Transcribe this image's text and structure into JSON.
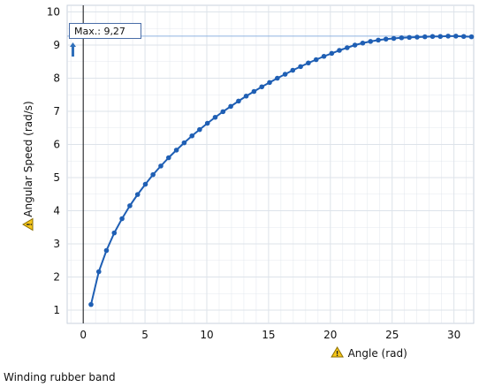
{
  "chart_data": {
    "type": "line",
    "title": "",
    "xlabel": "Angle (rad)",
    "ylabel": "Angular Speed (rad/s)",
    "xlim": [
      -1.3,
      31.6
    ],
    "ylim": [
      0.6,
      10.2
    ],
    "xticks": [
      0,
      5,
      10,
      15,
      20,
      25,
      30
    ],
    "yticks": [
      1,
      2,
      3,
      4,
      5,
      6,
      7,
      8,
      9,
      10
    ],
    "grid": true,
    "caption": "Winding rubber band",
    "annotation": {
      "label": "Max.: 9,27",
      "value": 9.27
    },
    "series": [
      {
        "x": [
          0.63,
          1.26,
          1.88,
          2.51,
          3.14,
          3.77,
          4.4,
          5.03,
          5.65,
          6.28,
          6.91,
          7.54,
          8.17,
          8.8,
          9.42,
          10.05,
          10.68,
          11.31,
          11.94,
          12.57,
          13.19,
          13.82,
          14.45,
          15.08,
          15.71,
          16.34,
          16.96,
          17.59,
          18.22,
          18.85,
          19.48,
          20.11,
          20.73,
          21.36,
          21.99,
          22.62,
          23.25,
          23.88,
          24.5,
          25.13,
          25.76,
          26.39,
          27.02,
          27.65,
          28.27,
          28.9,
          29.53,
          30.16,
          30.79,
          31.42
        ],
        "y": [
          1.17,
          2.16,
          2.8,
          3.33,
          3.76,
          4.15,
          4.49,
          4.8,
          5.09,
          5.35,
          5.6,
          5.83,
          6.05,
          6.26,
          6.45,
          6.64,
          6.82,
          6.99,
          7.15,
          7.31,
          7.46,
          7.6,
          7.74,
          7.87,
          8.0,
          8.12,
          8.24,
          8.35,
          8.46,
          8.56,
          8.66,
          8.75,
          8.84,
          8.92,
          9.0,
          9.06,
          9.11,
          9.15,
          9.18,
          9.2,
          9.22,
          9.23,
          9.24,
          9.25,
          9.26,
          9.26,
          9.27,
          9.27,
          9.26,
          9.25
        ]
      }
    ]
  },
  "colors": {
    "line": "#1f5fb4",
    "point": "#1f5fb4",
    "grid": "#dde3ea",
    "axis": "#444444",
    "marker_line": "#111111",
    "max_line": "#8fb3e0",
    "warning_fill": "#f5c518",
    "warning_stroke": "#8a6d00"
  },
  "icons": {
    "axis_warning": "warning-triangle-icon",
    "max_arrow": "up-arrow-icon"
  }
}
